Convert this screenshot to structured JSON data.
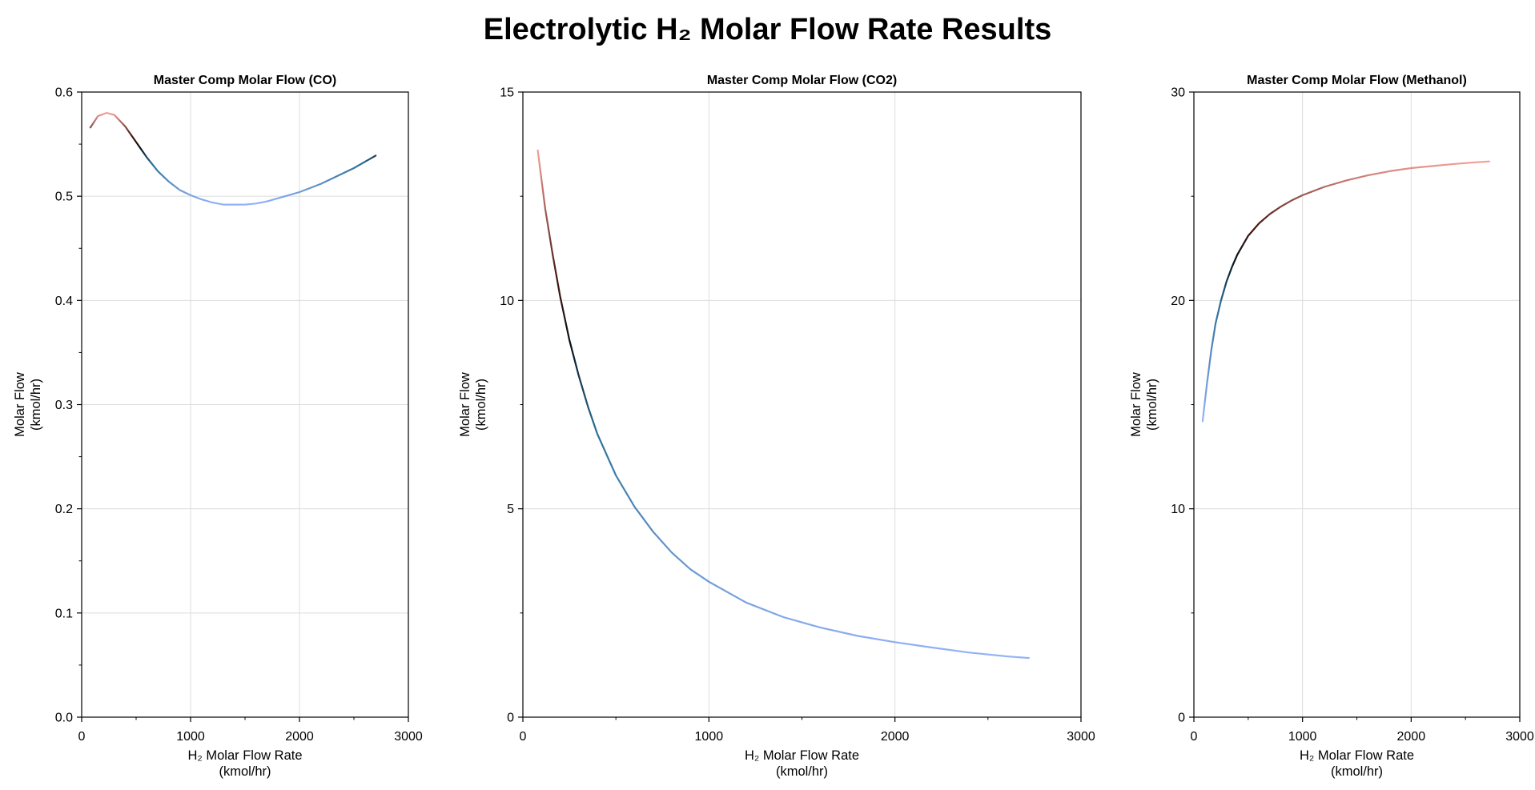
{
  "title": "Electrolytic H₂ Molar Flow Rate Results",
  "chart_data": [
    {
      "type": "line",
      "title": "Master Comp Molar Flow (CO)",
      "xlabel": [
        "H₂ Molar Flow Rate",
        "(kmol/hr)"
      ],
      "ylabel": [
        "Molar Flow",
        "(kmol/hr)"
      ],
      "xlim": [
        0,
        3000
      ],
      "ylim": [
        0,
        0.6
      ],
      "xticks": [
        0,
        1000,
        2000,
        3000
      ],
      "xtick_labels": [
        "0",
        "1000",
        "2000",
        "3000"
      ],
      "yticks": [
        0,
        0.1,
        0.2,
        0.3,
        0.4,
        0.5,
        0.6
      ],
      "ytick_labels": [
        "0.0",
        "0.1",
        "0.2",
        "0.3",
        "0.4",
        "0.5",
        "0.6"
      ],
      "grid": true,
      "line_gradient": true,
      "series": [
        {
          "x": [
            80,
            150,
            230,
            300,
            400,
            500,
            600,
            700,
            800,
            900,
            1000,
            1100,
            1200,
            1300,
            1400,
            1500,
            1600,
            1700,
            1800,
            1900,
            2000,
            2100,
            2200,
            2300,
            2400,
            2500,
            2600,
            2700
          ],
          "values": [
            0.566,
            0.577,
            0.58,
            0.578,
            0.567,
            0.552,
            0.537,
            0.524,
            0.514,
            0.506,
            0.501,
            0.497,
            0.494,
            0.492,
            0.492,
            0.492,
            0.493,
            0.495,
            0.498,
            0.501,
            0.504,
            0.508,
            0.512,
            0.517,
            0.522,
            0.527,
            0.533,
            0.539
          ]
        }
      ]
    },
    {
      "type": "line",
      "title": "Master Comp Molar Flow (CO2)",
      "xlabel": [
        "H₂ Molar Flow Rate",
        "(kmol/hr)"
      ],
      "ylabel": [
        "Molar Flow",
        "(kmol/hr)"
      ],
      "xlim": [
        0,
        3000
      ],
      "ylim": [
        0,
        15
      ],
      "xticks": [
        0,
        1000,
        2000,
        3000
      ],
      "xtick_labels": [
        "0",
        "1000",
        "2000",
        "3000"
      ],
      "yticks": [
        0,
        5,
        10,
        15
      ],
      "ytick_labels": [
        "0",
        "5",
        "10",
        "15"
      ],
      "grid": true,
      "line_gradient": true,
      "series": [
        {
          "x": [
            80,
            120,
            160,
            200,
            250,
            300,
            350,
            400,
            500,
            600,
            700,
            800,
            900,
            1000,
            1200,
            1400,
            1600,
            1800,
            2000,
            2200,
            2400,
            2600,
            2720
          ],
          "values": [
            13.6,
            12.2,
            11.1,
            10.1,
            9.05,
            8.2,
            7.45,
            6.8,
            5.8,
            5.05,
            4.45,
            3.95,
            3.55,
            3.25,
            2.75,
            2.4,
            2.15,
            1.95,
            1.8,
            1.67,
            1.55,
            1.46,
            1.42
          ]
        }
      ]
    },
    {
      "type": "line",
      "title": "Master Comp Molar Flow (Methanol)",
      "xlabel": [
        "H₂ Molar Flow Rate",
        "(kmol/hr)"
      ],
      "ylabel": [
        "Molar Flow",
        "(kmol/hr)"
      ],
      "xlim": [
        0,
        3000
      ],
      "ylim": [
        0,
        30
      ],
      "xticks": [
        0,
        1000,
        2000,
        3000
      ],
      "xtick_labels": [
        "0",
        "1000",
        "2000",
        "3000"
      ],
      "yticks": [
        0,
        10,
        20,
        30
      ],
      "ytick_labels": [
        "0",
        "10",
        "20",
        "30"
      ],
      "grid": true,
      "line_gradient": true,
      "series": [
        {
          "x": [
            80,
            120,
            160,
            200,
            250,
            300,
            350,
            400,
            500,
            600,
            700,
            800,
            900,
            1000,
            1200,
            1400,
            1600,
            1800,
            2000,
            2200,
            2400,
            2600,
            2720
          ],
          "values": [
            14.2,
            16.0,
            17.6,
            18.9,
            20.0,
            20.9,
            21.6,
            22.2,
            23.1,
            23.7,
            24.15,
            24.5,
            24.8,
            25.05,
            25.45,
            25.75,
            26.0,
            26.2,
            26.35,
            26.45,
            26.55,
            26.63,
            26.67
          ]
        }
      ]
    }
  ]
}
